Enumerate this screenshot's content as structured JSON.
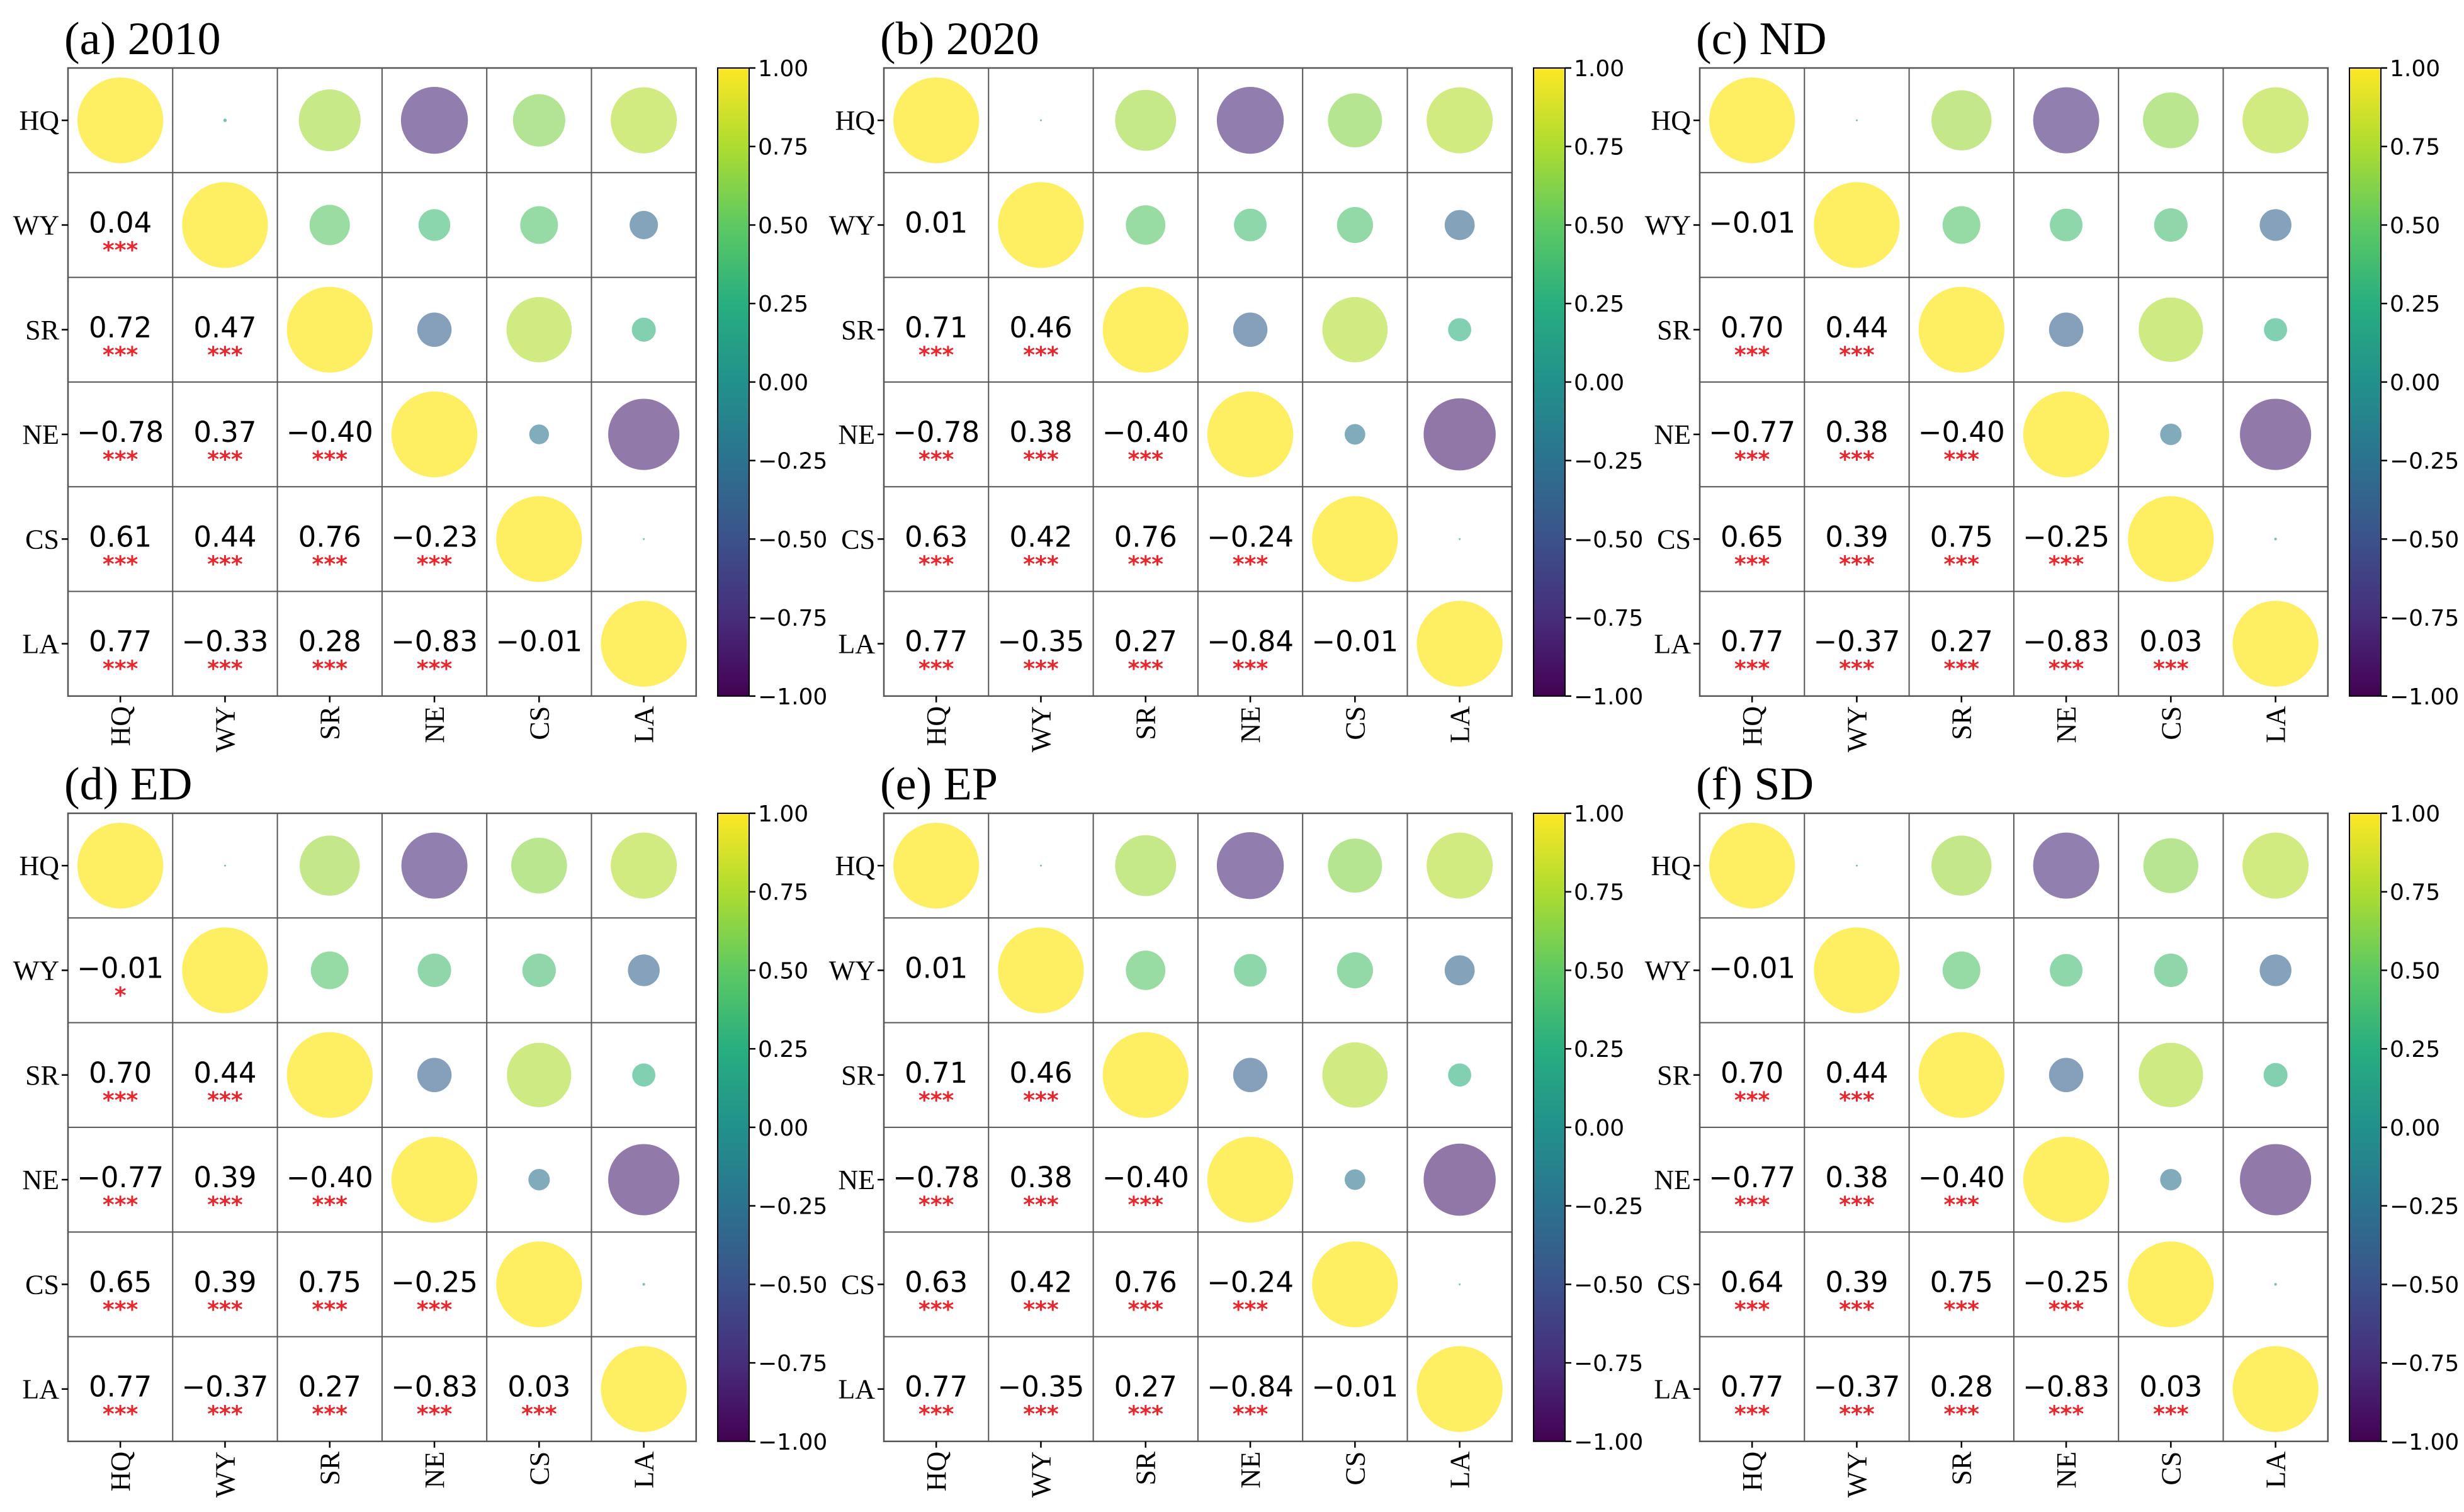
{
  "chart_data": [
    {
      "type": "heatmap",
      "title": "(a) 2010",
      "variables": [
        "HQ",
        "WY",
        "SR",
        "NE",
        "CS",
        "LA"
      ],
      "matrix": [
        [
          1.0,
          0.04,
          0.72,
          -0.78,
          0.61,
          0.77
        ],
        [
          0.04,
          1.0,
          0.47,
          0.37,
          0.44,
          -0.33
        ],
        [
          0.72,
          0.47,
          1.0,
          -0.4,
          0.76,
          0.28
        ],
        [
          -0.78,
          0.37,
          -0.4,
          1.0,
          -0.23,
          -0.83
        ],
        [
          0.61,
          0.44,
          0.76,
          -0.23,
          1.0,
          -0.01
        ],
        [
          0.77,
          -0.33,
          0.28,
          -0.83,
          -0.01,
          1.0
        ]
      ],
      "labels": [
        [
          null,
          null,
          null,
          null,
          null,
          null
        ],
        [
          "0.04",
          null,
          null,
          null,
          null,
          null
        ],
        [
          "0.72",
          "0.47",
          null,
          null,
          null,
          null
        ],
        [
          "−0.78",
          "0.37",
          "−0.40",
          null,
          null,
          null
        ],
        [
          "0.61",
          "0.44",
          "0.76",
          "−0.23",
          null,
          null
        ],
        [
          "0.77",
          "−0.33",
          "0.28",
          "−0.83",
          "−0.01",
          null
        ]
      ],
      "significance": [
        [
          null,
          null,
          null,
          null,
          null,
          null
        ],
        [
          "***",
          null,
          null,
          null,
          null,
          null
        ],
        [
          "***",
          "***",
          null,
          null,
          null,
          null
        ],
        [
          "***",
          "***",
          "***",
          null,
          null,
          null
        ],
        [
          "***",
          "***",
          "***",
          "***",
          null,
          null
        ],
        [
          "***",
          "***",
          "***",
          "***",
          "",
          null
        ]
      ],
      "colorbar_ticks": [
        "1.00",
        "0.75",
        "0.50",
        "0.25",
        "0.00",
        "−0.25",
        "−0.50",
        "−0.75",
        "−1.00"
      ]
    },
    {
      "type": "heatmap",
      "title": "(b) 2020",
      "variables": [
        "HQ",
        "WY",
        "SR",
        "NE",
        "CS",
        "LA"
      ],
      "matrix": [
        [
          1.0,
          0.01,
          0.71,
          -0.78,
          0.63,
          0.77
        ],
        [
          0.01,
          1.0,
          0.46,
          0.38,
          0.42,
          -0.35
        ],
        [
          0.71,
          0.46,
          1.0,
          -0.4,
          0.76,
          0.27
        ],
        [
          -0.78,
          0.38,
          -0.4,
          1.0,
          -0.24,
          -0.84
        ],
        [
          0.63,
          0.42,
          0.76,
          -0.24,
          1.0,
          -0.01
        ],
        [
          0.77,
          -0.35,
          0.27,
          -0.84,
          -0.01,
          1.0
        ]
      ],
      "labels": [
        [
          null,
          null,
          null,
          null,
          null,
          null
        ],
        [
          "0.01",
          null,
          null,
          null,
          null,
          null
        ],
        [
          "0.71",
          "0.46",
          null,
          null,
          null,
          null
        ],
        [
          "−0.78",
          "0.38",
          "−0.40",
          null,
          null,
          null
        ],
        [
          "0.63",
          "0.42",
          "0.76",
          "−0.24",
          null,
          null
        ],
        [
          "0.77",
          "−0.35",
          "0.27",
          "−0.84",
          "−0.01",
          null
        ]
      ],
      "significance": [
        [
          null,
          null,
          null,
          null,
          null,
          null
        ],
        [
          "",
          null,
          null,
          null,
          null,
          null
        ],
        [
          "***",
          "***",
          null,
          null,
          null,
          null
        ],
        [
          "***",
          "***",
          "***",
          null,
          null,
          null
        ],
        [
          "***",
          "***",
          "***",
          "***",
          null,
          null
        ],
        [
          "***",
          "***",
          "***",
          "***",
          "",
          null
        ]
      ],
      "colorbar_ticks": [
        "1.00",
        "0.75",
        "0.50",
        "0.25",
        "0.00",
        "−0.25",
        "−0.50",
        "−0.75",
        "−1.00"
      ]
    },
    {
      "type": "heatmap",
      "title": "(c) ND",
      "variables": [
        "HQ",
        "WY",
        "SR",
        "NE",
        "CS",
        "LA"
      ],
      "matrix": [
        [
          1.0,
          -0.01,
          0.7,
          -0.77,
          0.65,
          0.77
        ],
        [
          -0.01,
          1.0,
          0.44,
          0.38,
          0.39,
          -0.37
        ],
        [
          0.7,
          0.44,
          1.0,
          -0.4,
          0.75,
          0.27
        ],
        [
          -0.77,
          0.38,
          -0.4,
          1.0,
          -0.25,
          -0.83
        ],
        [
          0.65,
          0.39,
          0.75,
          -0.25,
          1.0,
          0.03
        ],
        [
          0.77,
          -0.37,
          0.27,
          -0.83,
          0.03,
          1.0
        ]
      ],
      "labels": [
        [
          null,
          null,
          null,
          null,
          null,
          null
        ],
        [
          "−0.01",
          null,
          null,
          null,
          null,
          null
        ],
        [
          "0.70",
          "0.44",
          null,
          null,
          null,
          null
        ],
        [
          "−0.77",
          "0.38",
          "−0.40",
          null,
          null,
          null
        ],
        [
          "0.65",
          "0.39",
          "0.75",
          "−0.25",
          null,
          null
        ],
        [
          "0.77",
          "−0.37",
          "0.27",
          "−0.83",
          "0.03",
          null
        ]
      ],
      "significance": [
        [
          null,
          null,
          null,
          null,
          null,
          null
        ],
        [
          "",
          null,
          null,
          null,
          null,
          null
        ],
        [
          "***",
          "***",
          null,
          null,
          null,
          null
        ],
        [
          "***",
          "***",
          "***",
          null,
          null,
          null
        ],
        [
          "***",
          "***",
          "***",
          "***",
          null,
          null
        ],
        [
          "***",
          "***",
          "***",
          "***",
          "***",
          null
        ]
      ],
      "colorbar_ticks": [
        "1.00",
        "0.75",
        "0.50",
        "0.25",
        "0.00",
        "−0.25",
        "−0.50",
        "−0.75",
        "−1.00"
      ]
    },
    {
      "type": "heatmap",
      "title": "(d) ED",
      "variables": [
        "HQ",
        "WY",
        "SR",
        "NE",
        "CS",
        "LA"
      ],
      "matrix": [
        [
          1.0,
          -0.01,
          0.7,
          -0.77,
          0.65,
          0.77
        ],
        [
          -0.01,
          1.0,
          0.44,
          0.39,
          0.39,
          -0.37
        ],
        [
          0.7,
          0.44,
          1.0,
          -0.4,
          0.75,
          0.27
        ],
        [
          -0.77,
          0.39,
          -0.4,
          1.0,
          -0.25,
          -0.83
        ],
        [
          0.65,
          0.39,
          0.75,
          -0.25,
          1.0,
          0.03
        ],
        [
          0.77,
          -0.37,
          0.27,
          -0.83,
          0.03,
          1.0
        ]
      ],
      "labels": [
        [
          null,
          null,
          null,
          null,
          null,
          null
        ],
        [
          "−0.01",
          null,
          null,
          null,
          null,
          null
        ],
        [
          "0.70",
          "0.44",
          null,
          null,
          null,
          null
        ],
        [
          "−0.77",
          "0.39",
          "−0.40",
          null,
          null,
          null
        ],
        [
          "0.65",
          "0.39",
          "0.75",
          "−0.25",
          null,
          null
        ],
        [
          "0.77",
          "−0.37",
          "0.27",
          "−0.83",
          "0.03",
          null
        ]
      ],
      "significance": [
        [
          null,
          null,
          null,
          null,
          null,
          null
        ],
        [
          "*",
          null,
          null,
          null,
          null,
          null
        ],
        [
          "***",
          "***",
          null,
          null,
          null,
          null
        ],
        [
          "***",
          "***",
          "***",
          null,
          null,
          null
        ],
        [
          "***",
          "***",
          "***",
          "***",
          null,
          null
        ],
        [
          "***",
          "***",
          "***",
          "***",
          "***",
          null
        ]
      ],
      "colorbar_ticks": [
        "1.00",
        "0.75",
        "0.50",
        "0.25",
        "0.00",
        "−0.25",
        "−0.50",
        "−0.75",
        "−1.00"
      ]
    },
    {
      "type": "heatmap",
      "title": "(e) EP",
      "variables": [
        "HQ",
        "WY",
        "SR",
        "NE",
        "CS",
        "LA"
      ],
      "matrix": [
        [
          1.0,
          0.01,
          0.71,
          -0.78,
          0.63,
          0.77
        ],
        [
          0.01,
          1.0,
          0.46,
          0.38,
          0.42,
          -0.35
        ],
        [
          0.71,
          0.46,
          1.0,
          -0.4,
          0.76,
          0.27
        ],
        [
          -0.78,
          0.38,
          -0.4,
          1.0,
          -0.24,
          -0.84
        ],
        [
          0.63,
          0.42,
          0.76,
          -0.24,
          1.0,
          -0.01
        ],
        [
          0.77,
          -0.35,
          0.27,
          -0.84,
          -0.01,
          1.0
        ]
      ],
      "labels": [
        [
          null,
          null,
          null,
          null,
          null,
          null
        ],
        [
          "0.01",
          null,
          null,
          null,
          null,
          null
        ],
        [
          "0.71",
          "0.46",
          null,
          null,
          null,
          null
        ],
        [
          "−0.78",
          "0.38",
          "−0.40",
          null,
          null,
          null
        ],
        [
          "0.63",
          "0.42",
          "0.76",
          "−0.24",
          null,
          null
        ],
        [
          "0.77",
          "−0.35",
          "0.27",
          "−0.84",
          "−0.01",
          null
        ]
      ],
      "significance": [
        [
          null,
          null,
          null,
          null,
          null,
          null
        ],
        [
          "",
          null,
          null,
          null,
          null,
          null
        ],
        [
          "***",
          "***",
          null,
          null,
          null,
          null
        ],
        [
          "***",
          "***",
          "***",
          null,
          null,
          null
        ],
        [
          "***",
          "***",
          "***",
          "***",
          null,
          null
        ],
        [
          "***",
          "***",
          "***",
          "***",
          "",
          null
        ]
      ],
      "colorbar_ticks": [
        "1.00",
        "0.75",
        "0.50",
        "0.25",
        "0.00",
        "−0.25",
        "−0.50",
        "−0.75",
        "−1.00"
      ]
    },
    {
      "type": "heatmap",
      "title": "(f) SD",
      "variables": [
        "HQ",
        "WY",
        "SR",
        "NE",
        "CS",
        "LA"
      ],
      "matrix": [
        [
          1.0,
          -0.01,
          0.7,
          -0.77,
          0.64,
          0.77
        ],
        [
          -0.01,
          1.0,
          0.44,
          0.38,
          0.39,
          -0.37
        ],
        [
          0.7,
          0.44,
          1.0,
          -0.4,
          0.75,
          0.28
        ],
        [
          -0.77,
          0.38,
          -0.4,
          1.0,
          -0.25,
          -0.83
        ],
        [
          0.64,
          0.39,
          0.75,
          -0.25,
          1.0,
          0.03
        ],
        [
          0.77,
          -0.37,
          0.28,
          -0.83,
          0.03,
          1.0
        ]
      ],
      "labels": [
        [
          null,
          null,
          null,
          null,
          null,
          null
        ],
        [
          "−0.01",
          null,
          null,
          null,
          null,
          null
        ],
        [
          "0.70",
          "0.44",
          null,
          null,
          null,
          null
        ],
        [
          "−0.77",
          "0.38",
          "−0.40",
          null,
          null,
          null
        ],
        [
          "0.64",
          "0.39",
          "0.75",
          "−0.25",
          null,
          null
        ],
        [
          "0.77",
          "−0.37",
          "0.28",
          "−0.83",
          "0.03",
          null
        ]
      ],
      "significance": [
        [
          null,
          null,
          null,
          null,
          null,
          null
        ],
        [
          "",
          null,
          null,
          null,
          null,
          null
        ],
        [
          "***",
          "***",
          null,
          null,
          null,
          null
        ],
        [
          "***",
          "***",
          "***",
          null,
          null,
          null
        ],
        [
          "***",
          "***",
          "***",
          "***",
          null,
          null
        ],
        [
          "***",
          "***",
          "***",
          "***",
          "***",
          null
        ]
      ],
      "colorbar_ticks": [
        "1.00",
        "0.75",
        "0.50",
        "0.25",
        "0.00",
        "−0.25",
        "−0.50",
        "−0.75",
        "−1.00"
      ]
    }
  ],
  "colors": {
    "significance": "#e8262b",
    "grid": "#555555",
    "text": "#000000"
  }
}
